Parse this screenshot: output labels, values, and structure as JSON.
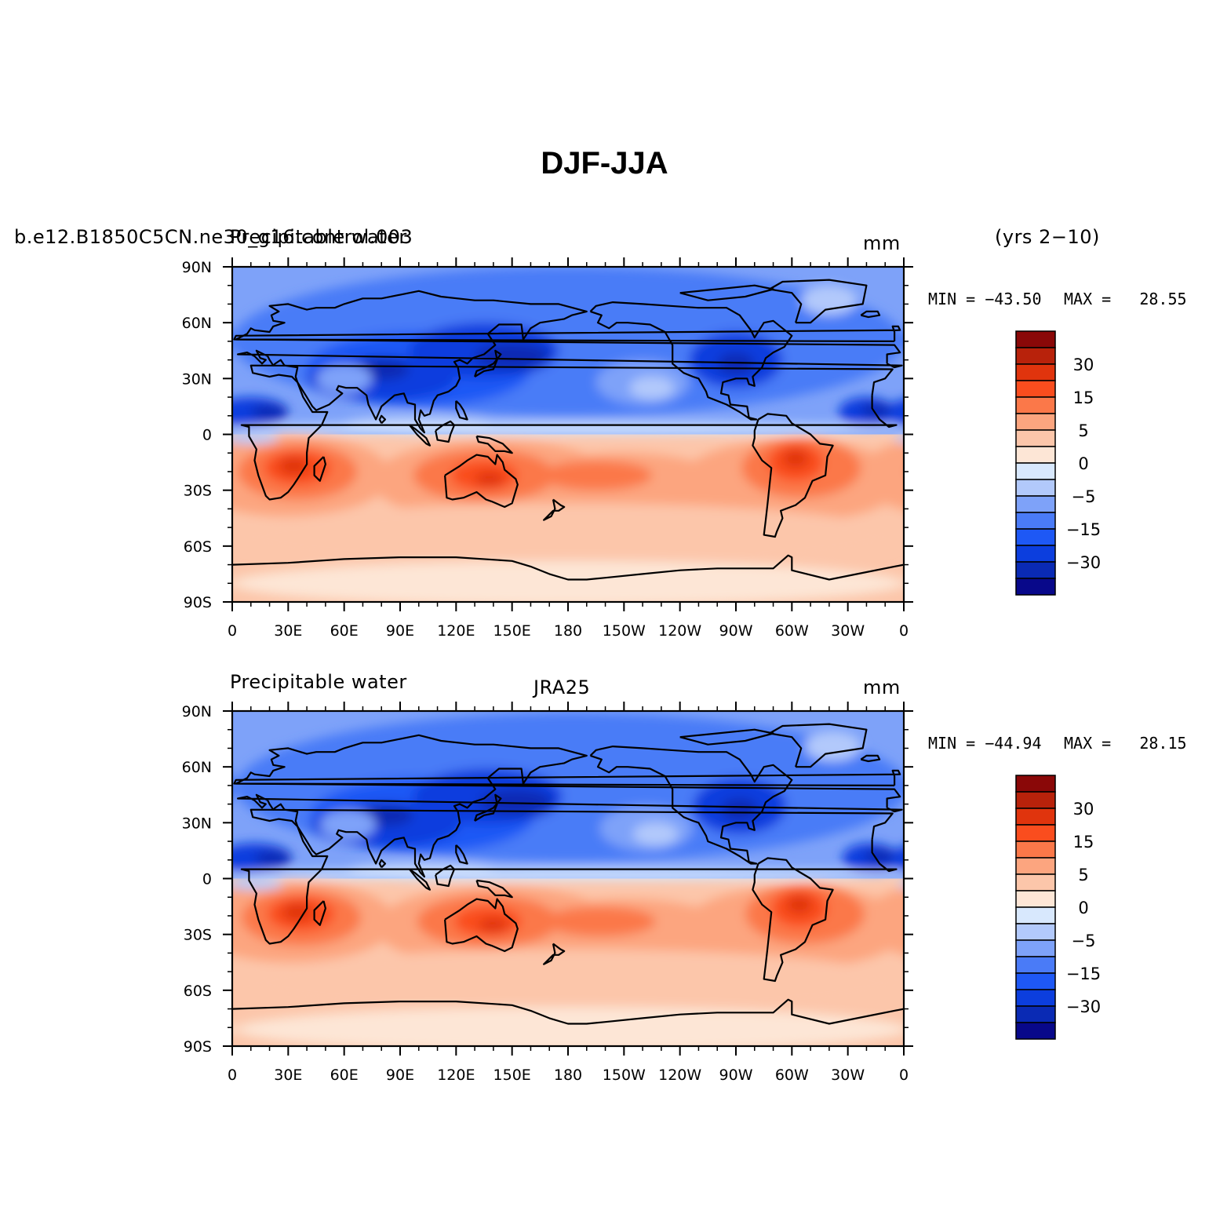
{
  "title": "DJF-JJA",
  "panels": [
    {
      "left_text": "b.e12.B1850C5CN.ne30_g16.control.003",
      "left_text_overlay": "Precipitable water",
      "center_text": "",
      "right_text": "mm",
      "period": "(yrs 2−10)",
      "min_label": "MIN = −43.50",
      "max_label": "MAX =   28.55"
    },
    {
      "left_text": "Precipitable water",
      "left_text_overlay": "",
      "center_text": "JRA25",
      "right_text": "mm",
      "period": "",
      "min_label": "MIN = −44.94",
      "max_label": "MAX =   28.15"
    }
  ],
  "axes": {
    "lat_ticks": [
      "90N",
      "60N",
      "30N",
      "0",
      "30S",
      "60S",
      "90S"
    ],
    "lon_ticks": [
      "0",
      "30E",
      "60E",
      "90E",
      "120E",
      "150E",
      "180",
      "150W",
      "120W",
      "90W",
      "60W",
      "30W",
      "0"
    ]
  },
  "colorbar": {
    "colors": [
      "#08088a",
      "#0a2ab4",
      "#0c3ede",
      "#1e58f5",
      "#4a7bf7",
      "#7ea2f9",
      "#b2c9fb",
      "#d8e8fd",
      "#fde6d6",
      "#fcc6aa",
      "#fca57f",
      "#fb7849",
      "#fa4d1e",
      "#e0340d",
      "#b8220b",
      "#8a0808"
    ],
    "labels": [
      "30",
      "15",
      "5",
      "0",
      "−5",
      "−15",
      "−30"
    ]
  },
  "chart_data": [
    {
      "type": "heatmap",
      "x": [
        "0",
        "30E",
        "60E",
        "90E",
        "120E",
        "150E",
        "180",
        "150W",
        "120W",
        "90W",
        "60W",
        "30W",
        "0"
      ],
      "y": [
        "90N",
        "60N",
        "30N",
        "0",
        "30S",
        "60S",
        "90S"
      ],
      "min": -43.5,
      "max": 28.55,
      "units": "mm"
    },
    {
      "type": "heatmap",
      "x": [
        "0",
        "30E",
        "60E",
        "90E",
        "120E",
        "150E",
        "180",
        "150W",
        "120W",
        "90W",
        "60W",
        "30W",
        "0"
      ],
      "y": [
        "90N",
        "60N",
        "30N",
        "0",
        "30S",
        "60S",
        "90S"
      ],
      "min": -44.94,
      "max": 28.15,
      "units": "mm"
    }
  ]
}
